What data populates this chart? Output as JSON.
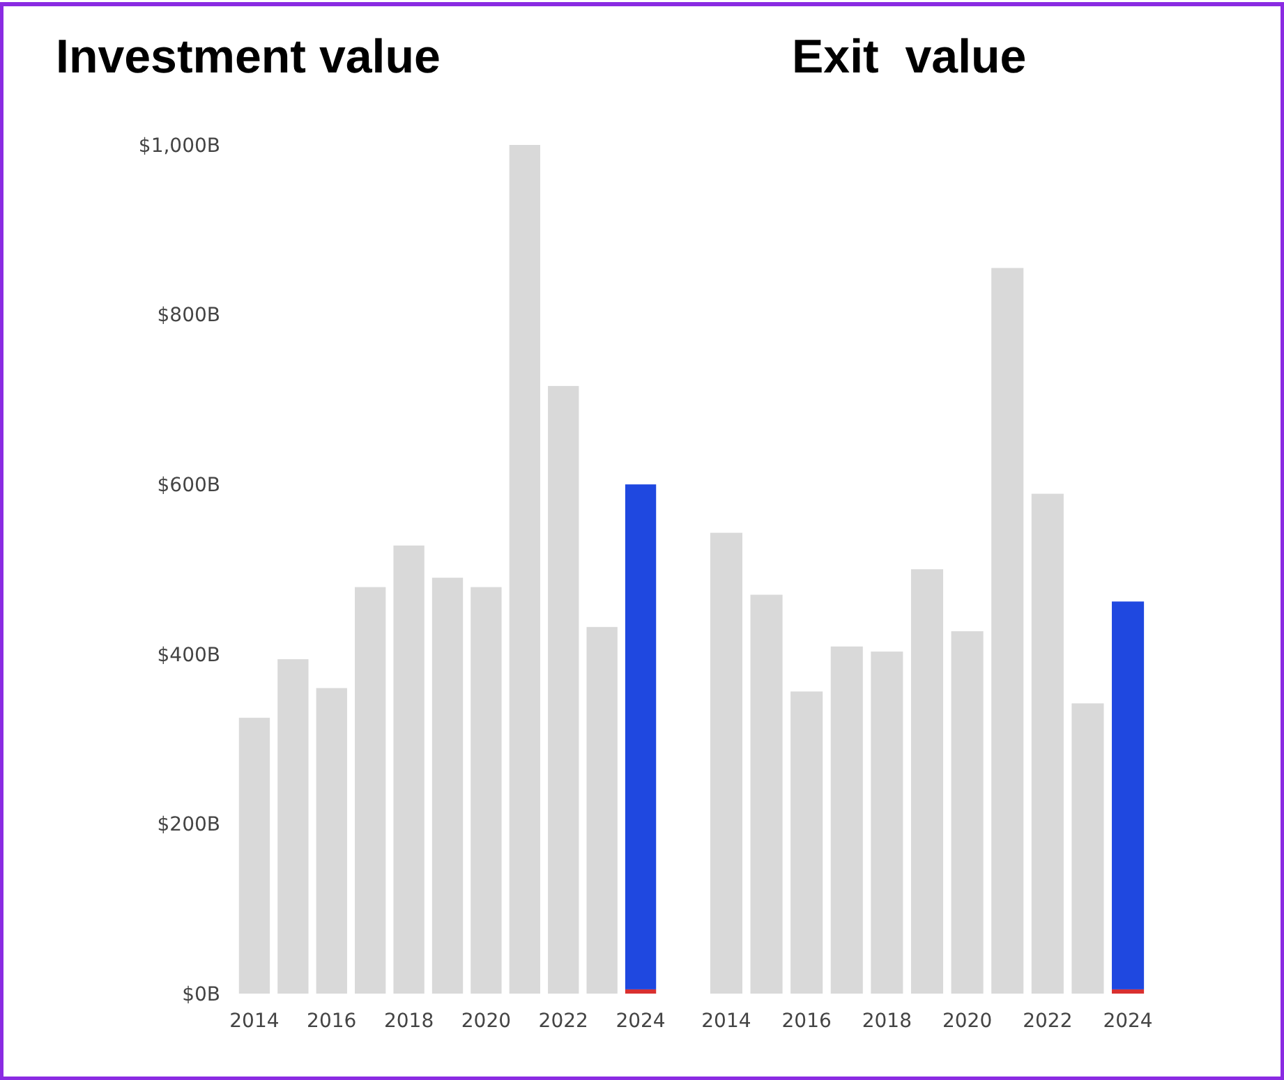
{
  "chart_data": [
    {
      "type": "bar",
      "title": "Investment value",
      "categories": [
        "2014",
        null,
        "2016",
        null,
        "2018",
        null,
        "2020",
        null,
        "2022",
        null,
        "2024"
      ],
      "stacked": true,
      "ylim": [
        0,
        1000
      ],
      "yticks": [
        {
          "value": 0,
          "label": "$0B"
        },
        {
          "value": 200,
          "label": "$200B"
        },
        {
          "value": 400,
          "label": "$400B"
        },
        {
          "value": 600,
          "label": "$600B"
        },
        {
          "value": 800,
          "label": "$800B"
        },
        {
          "value": 1000,
          "label": "$1,000B"
        }
      ],
      "series": [
        {
          "color": "#d93030",
          "values": [
            null,
            null,
            null,
            null,
            null,
            null,
            null,
            null,
            null,
            null,
            5
          ]
        },
        {
          "colors": [
            "#d9d9d9",
            "#d9d9d9",
            "#d9d9d9",
            "#d9d9d9",
            "#d9d9d9",
            "#d9d9d9",
            "#d9d9d9",
            "#d9d9d9",
            "#d9d9d9",
            "#d9d9d9",
            "#1f48e0"
          ],
          "values": [
            325,
            394,
            360,
            479,
            528,
            490,
            479,
            1000,
            716,
            432,
            595
          ]
        }
      ]
    },
    {
      "type": "bar",
      "title": "Exit  value",
      "categories": [
        "2014",
        null,
        "2016",
        null,
        "2018",
        null,
        "2020",
        null,
        "2022",
        null,
        "2024"
      ],
      "stacked": true,
      "ylim": [
        0,
        1000
      ],
      "tick_labels": "x",
      "series": [
        {
          "color": "#d93030",
          "values": [
            null,
            null,
            null,
            null,
            null,
            null,
            null,
            null,
            null,
            null,
            5
          ]
        },
        {
          "colors": [
            "#d9d9d9",
            "#d9d9d9",
            "#d9d9d9",
            "#d9d9d9",
            "#d9d9d9",
            "#d9d9d9",
            "#d9d9d9",
            "#d9d9d9",
            "#d9d9d9",
            "#d9d9d9",
            "#1f48e0"
          ],
          "values": [
            543,
            470,
            356,
            409,
            403,
            500,
            427,
            855,
            589,
            342,
            457
          ]
        }
      ]
    }
  ]
}
